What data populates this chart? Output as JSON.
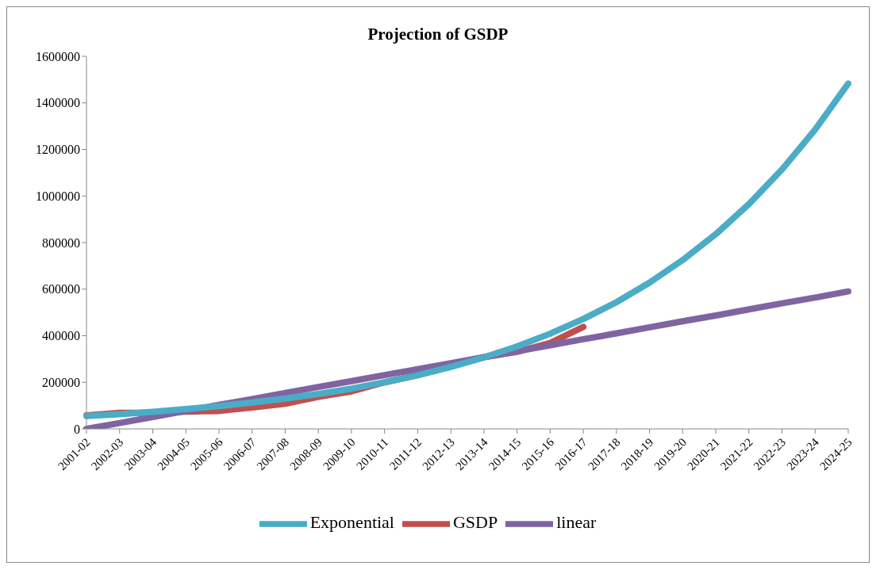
{
  "chart_data": {
    "type": "line",
    "title": "Projection of GSDP",
    "categories": [
      "2001-02",
      "2002-03",
      "2003-04",
      "2004-05",
      "2005-06",
      "2006-07",
      "2007-08",
      "2008-09",
      "2009-10",
      "2010-11",
      "2011-12",
      "2012-13",
      "2013-14",
      "2014-15",
      "2015-16",
      "2016-17",
      "2017-18",
      "2018-19",
      "2019-20",
      "2020-21",
      "2021-22",
      "2022-23",
      "2023-24",
      "2024-25"
    ],
    "series": [
      {
        "name": "GSDP",
        "color": "#c0504d",
        "values": [
          58000,
          69000,
          69000,
          74000,
          77000,
          92000,
          108000,
          138000,
          161000,
          200000,
          231000,
          269000,
          308000,
          331000,
          369000,
          438000,
          null,
          null,
          null,
          null,
          null,
          null,
          null,
          null
        ]
      },
      {
        "name": "linear",
        "color": "#8064a2",
        "values": [
          0,
          25000,
          51000,
          77000,
          103000,
          128000,
          154000,
          180000,
          205000,
          231000,
          256000,
          282000,
          308000,
          333000,
          359000,
          385000,
          410000,
          436000,
          462000,
          487000,
          513000,
          539000,
          564000,
          590000
        ]
      },
      {
        "name": "Exponential",
        "color": "#4bacc6",
        "values": [
          55000,
          63000,
          73000,
          85000,
          98000,
          113000,
          130000,
          150000,
          173000,
          200000,
          230000,
          266000,
          307000,
          354000,
          409000,
          472000,
          544000,
          628000,
          725000,
          836000,
          965000,
          1114000,
          1285000,
          1483000
        ]
      }
    ],
    "ylim": [
      0,
      1600000
    ],
    "yticks": [
      0,
      200000,
      400000,
      600000,
      800000,
      1000000,
      1200000,
      1400000,
      1600000
    ],
    "grid": false,
    "legend": "bottom",
    "marker": "none",
    "line_style": "solid"
  }
}
